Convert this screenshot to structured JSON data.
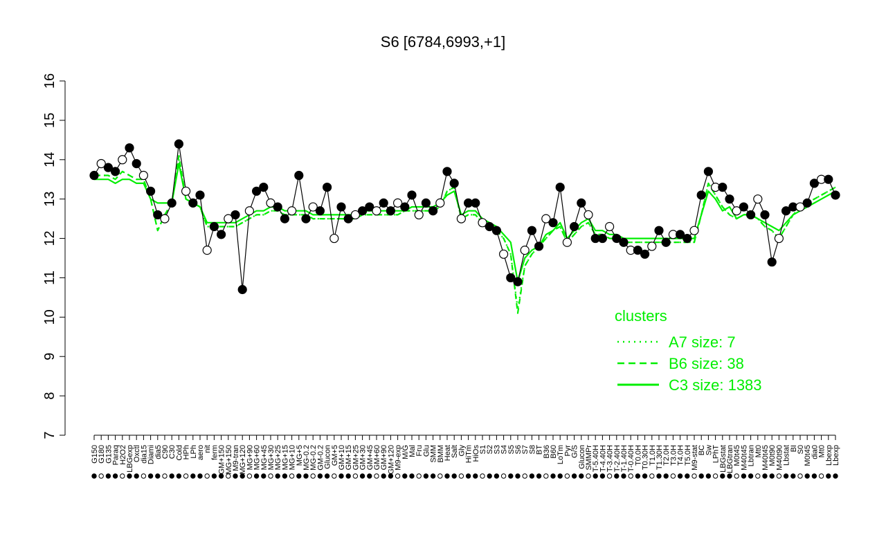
{
  "chart_data": {
    "type": "line",
    "title": "S6 [6784,6993,+1]",
    "xlabel": "",
    "ylabel": "",
    "ylim": [
      7,
      16
    ],
    "yticks": [
      7,
      8,
      9,
      10,
      11,
      12,
      13,
      14,
      15,
      16
    ],
    "grid": false,
    "legend": {
      "title": "clusters",
      "placement": "right",
      "entries": [
        {
          "label": "A7 size: 7",
          "style": "dotted"
        },
        {
          "label": "B6 size: 38",
          "style": "dashed"
        },
        {
          "label": "C3 size: 1383",
          "style": "solid"
        }
      ]
    },
    "x_tick_labels": [
      "G150",
      "G180",
      "G135",
      "Paraq",
      "H2O2",
      "LBGexp",
      "Oxctl",
      "dia15",
      "Diami",
      "dia5",
      "C90",
      "C30",
      "Cold",
      "HPh",
      "LPh",
      "aero",
      "nit",
      "ferm",
      "GM+150",
      "MG+150",
      "M9-tran",
      "MG+120",
      "MG+90",
      "MG+60",
      "MG+45",
      "MG+30",
      "MG+25",
      "MG+15",
      "MG+10",
      "MG+5",
      "MG-0.2",
      "MG-0.2",
      "GM-0.2",
      "Glucon",
      "GM+5",
      "GM+10",
      "GM+15",
      "GM+25",
      "GM+30",
      "GM+45",
      "GM+60",
      "GM+90",
      "GM+120",
      "M9-exp",
      "M/G",
      "Mal",
      "Fru",
      "Glu",
      "SMM",
      "BMM",
      "Heat",
      "Salt",
      "Gly",
      "HiTm",
      "HiOs",
      "S1",
      "S2",
      "S3",
      "S4",
      "S5",
      "S6",
      "S7",
      "S8",
      "BT",
      "B36",
      "B60",
      "LoTm",
      "Pyr",
      "G/S",
      "Glucon",
      "SMMPr",
      "T-5.40H",
      "T-4.40H",
      "T-3.40H",
      "T-2.40H",
      "T-1.40H",
      "T-0.40H",
      "T0.0H",
      "T0.30H",
      "T1.0H",
      "T1.30H",
      "T2.0H",
      "T3.0H",
      "T4.0H",
      "T5.0H",
      "M9-stat",
      "BC",
      "Sw",
      "LPhT",
      "LBGstat",
      "LBGtran",
      "M0t45",
      "M40t45",
      "Lbtran",
      "Mt0",
      "M40t45",
      "M0t90",
      "M40t90",
      "Lbstat",
      "BI",
      "S0",
      "M0t45",
      "dia0",
      "Mt0",
      "Lbexp",
      "Lbexp"
    ],
    "series": [
      {
        "name": "C3 size: 1383",
        "values": [
          13.5,
          13.5,
          13.5,
          13.4,
          13.5,
          13.5,
          13.4,
          13.4,
          13.0,
          12.9,
          12.9,
          12.9,
          13.9,
          13.0,
          12.9,
          12.8,
          12.4,
          12.4,
          12.4,
          12.4,
          12.4,
          12.5,
          12.6,
          12.7,
          12.7,
          12.8,
          12.8,
          12.7,
          12.7,
          12.7,
          12.7,
          12.6,
          12.6,
          12.6,
          12.6,
          12.6,
          12.6,
          12.6,
          12.7,
          12.7,
          12.7,
          12.7,
          12.7,
          12.7,
          12.7,
          12.8,
          12.8,
          12.8,
          12.8,
          12.9,
          13.1,
          13.2,
          12.6,
          12.7,
          12.7,
          12.5,
          12.4,
          12.3,
          12.1,
          11.9,
          10.9,
          11.5,
          11.7,
          11.8,
          12.1,
          12.2,
          12.4,
          12.0,
          12.2,
          12.4,
          12.5,
          12.2,
          12.2,
          12.1,
          12.1,
          12.0,
          12.0,
          12.0,
          12.0,
          12.0,
          12.0,
          12.0,
          12.0,
          12.0,
          12.0,
          12.0,
          12.6,
          13.2,
          13.0,
          12.7,
          12.8,
          12.5,
          12.6,
          12.6,
          12.5,
          12.4,
          12.3,
          12.2,
          12.4,
          12.6,
          12.7,
          12.8,
          12.9,
          13.0,
          13.1,
          13.2
        ]
      },
      {
        "name": "B6 size: 38",
        "values": [
          13.6,
          13.6,
          13.6,
          13.5,
          13.7,
          13.6,
          13.5,
          13.5,
          13.0,
          12.2,
          12.6,
          12.9,
          14.1,
          13.0,
          12.9,
          12.8,
          12.3,
          12.3,
          12.3,
          12.3,
          12.3,
          12.4,
          12.5,
          12.6,
          12.6,
          12.7,
          12.7,
          12.6,
          12.6,
          12.6,
          12.6,
          12.5,
          12.5,
          12.5,
          12.5,
          12.5,
          12.5,
          12.5,
          12.6,
          12.6,
          12.6,
          12.6,
          12.6,
          12.6,
          12.7,
          12.7,
          12.7,
          12.7,
          12.7,
          12.8,
          13.2,
          13.3,
          12.5,
          12.6,
          12.6,
          12.4,
          12.3,
          12.2,
          12.0,
          11.6,
          10.1,
          11.3,
          11.6,
          11.8,
          12.0,
          12.2,
          12.3,
          11.9,
          12.1,
          12.3,
          12.4,
          12.1,
          12.1,
          12.0,
          12.0,
          11.9,
          11.9,
          11.9,
          11.9,
          11.9,
          11.9,
          11.9,
          11.9,
          11.9,
          11.9,
          11.9,
          12.6,
          13.4,
          13.1,
          12.8,
          12.6,
          12.5,
          12.6,
          12.6,
          12.5,
          12.3,
          12.2,
          12.0,
          12.3,
          12.6,
          12.8,
          12.9,
          13.0,
          13.1,
          13.2,
          13.3
        ]
      },
      {
        "name": "A7 size: 7",
        "values": [
          13.6,
          13.6,
          13.6,
          13.5,
          13.7,
          13.6,
          13.5,
          13.5,
          13.0,
          12.2,
          12.6,
          12.9,
          14.0,
          13.0,
          12.9,
          12.8,
          12.3,
          12.3,
          12.3,
          12.3,
          12.3,
          12.4,
          12.5,
          12.6,
          12.6,
          12.7,
          12.7,
          12.6,
          12.6,
          12.6,
          12.6,
          12.5,
          12.5,
          12.5,
          12.5,
          12.5,
          12.5,
          12.5,
          12.6,
          12.6,
          12.6,
          12.6,
          12.6,
          12.6,
          12.7,
          12.7,
          12.7,
          12.7,
          12.7,
          12.8,
          13.2,
          13.3,
          12.5,
          12.6,
          12.6,
          12.4,
          12.3,
          12.2,
          12.0,
          11.6,
          10.2,
          11.3,
          11.6,
          11.8,
          12.0,
          12.2,
          12.3,
          11.9,
          12.1,
          12.3,
          12.4,
          12.1,
          12.1,
          12.0,
          12.0,
          11.9,
          11.9,
          11.9,
          11.9,
          11.9,
          11.9,
          11.9,
          11.9,
          11.9,
          11.9,
          11.9,
          12.6,
          13.4,
          13.1,
          12.8,
          12.6,
          12.5,
          12.6,
          12.6,
          12.5,
          12.3,
          12.2,
          12.0,
          12.3,
          12.6,
          12.8,
          12.9,
          13.0,
          13.1,
          13.2,
          13.3
        ]
      },
      {
        "name": "",
        "values": [
          13.6,
          13.9,
          13.8,
          13.7,
          14.0,
          14.3,
          13.9,
          13.6,
          13.2,
          12.6,
          12.5,
          12.9,
          14.4,
          13.2,
          12.9,
          13.1,
          11.7,
          12.3,
          12.1,
          12.5,
          12.6,
          10.7,
          12.7,
          13.2,
          13.3,
          12.9,
          12.8,
          12.5,
          12.7,
          13.6,
          12.5,
          12.8,
          12.7,
          13.3,
          12.0,
          12.8,
          12.5,
          12.6,
          12.7,
          12.8,
          12.7,
          12.9,
          12.7,
          12.9,
          12.8,
          13.1,
          12.6,
          12.9,
          12.7,
          12.9,
          13.7,
          13.4,
          12.5,
          12.9,
          12.9,
          12.4,
          12.3,
          12.2,
          11.6,
          11.0,
          10.9,
          11.7,
          12.2,
          11.8,
          12.5,
          12.4,
          13.3,
          11.9,
          12.3,
          12.9,
          12.6,
          12.0,
          12.0,
          12.3,
          12.0,
          11.9,
          11.7,
          11.7,
          11.6,
          11.8,
          12.2,
          11.9,
          12.1,
          12.1,
          12.0,
          12.2,
          13.1,
          13.7,
          13.3,
          13.3,
          13.0,
          12.7,
          12.8,
          12.6,
          13.0,
          12.6,
          11.4,
          12.0,
          12.7,
          12.8,
          12.8,
          12.9,
          13.4,
          13.5,
          13.5,
          13.1
        ]
      }
    ],
    "series_styles": [
      {
        "color": "#00ee00",
        "dash": "",
        "width": 2.2
      },
      {
        "color": "#00ee00",
        "dash": "8,6",
        "width": 2.2
      },
      {
        "color": "#00ee00",
        "dash": "2,5",
        "width": 2.2
      },
      {
        "color": "#000000",
        "dash": "",
        "width": 1.2,
        "markers": true
      }
    ],
    "marker_fill": "#000000",
    "marker_alt_fill": "#ffffff"
  }
}
